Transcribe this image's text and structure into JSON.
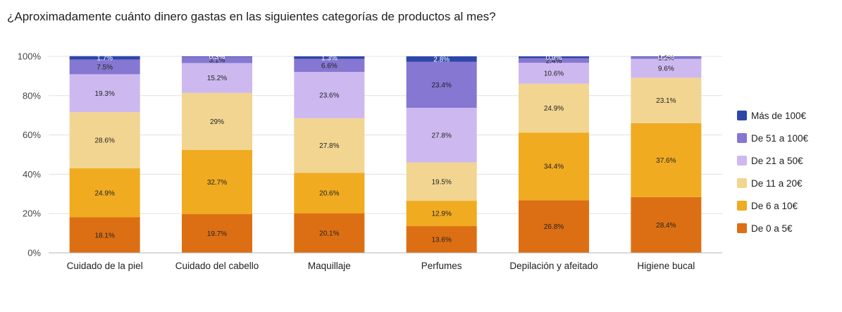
{
  "chart_data": {
    "type": "bar",
    "stacked": true,
    "normalized": true,
    "title": "¿Aproximadamente cuánto dinero gastas en las siguientes categorías de productos al mes?",
    "xlabel": "",
    "ylabel": "",
    "ylim": [
      0,
      100
    ],
    "yticks": [
      "0%",
      "20%",
      "40%",
      "60%",
      "80%",
      "100%"
    ],
    "grid": true,
    "legend_position": "right",
    "categories": [
      "Cuidado de la piel",
      "Cuidado del cabello",
      "Maquillaje",
      "Perfumes",
      "Depilación y afeitado",
      "Higiene bucal"
    ],
    "series": [
      {
        "name": "De 0 a 5€",
        "color": "#dc6f14",
        "values": [
          18.1,
          19.7,
          20.1,
          13.6,
          26.8,
          28.4
        ],
        "labels": [
          "18.1%",
          "19.7%",
          "20.1%",
          "13.6%",
          "26.8%",
          "28.4%"
        ]
      },
      {
        "name": "De 6 a 10€",
        "color": "#f0ab21",
        "values": [
          24.9,
          32.7,
          20.6,
          12.9,
          34.4,
          37.6
        ],
        "labels": [
          "24.9%",
          "32.7%",
          "20.6%",
          "12.9%",
          "34.4%",
          "37.6%"
        ]
      },
      {
        "name": "De 11 a 20€",
        "color": "#f2d591",
        "values": [
          28.6,
          29,
          27.8,
          19.5,
          24.9,
          23.1
        ],
        "labels": [
          "28.6%",
          "29%",
          "27.8%",
          "19.5%",
          "24.9%",
          "23.1%"
        ]
      },
      {
        "name": "De 21 a 50€",
        "color": "#cdb9ef",
        "values": [
          19.3,
          15.2,
          23.6,
          27.8,
          10.6,
          9.6
        ],
        "labels": [
          "19.3%",
          "15.2%",
          "23.6%",
          "27.8%",
          "10.6%",
          "9.6%"
        ]
      },
      {
        "name": "De 51 a 100€",
        "color": "#8677d2",
        "values": [
          7.5,
          3.1,
          6.6,
          23.4,
          2.4,
          1.1
        ],
        "labels": [
          "7.5%",
          "3.1%",
          "6.6%",
          "23.4%",
          "2.4%",
          "1.1%"
        ]
      },
      {
        "name": "Más de 100€",
        "color": "#2e46a9",
        "values": [
          1.7,
          0.3,
          1.3,
          2.8,
          0.9,
          0.2
        ],
        "labels": [
          "1.7%",
          "0.3%",
          "1.3%",
          "2.8%",
          "0.9%",
          "0.2%"
        ]
      }
    ],
    "legend_order": [
      "Más de 100€",
      "De 51 a 100€",
      "De 21 a 50€",
      "De 11 a 20€",
      "De 6 a 10€",
      "De 0 a 5€"
    ]
  }
}
